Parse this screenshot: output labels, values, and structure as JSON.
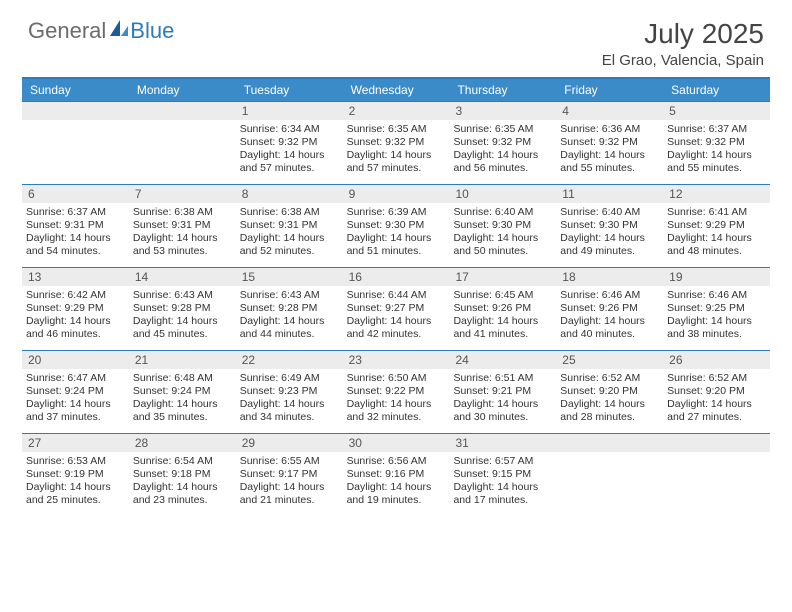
{
  "logo": {
    "general": "General",
    "blue": "Blue"
  },
  "title": "July 2025",
  "location": "El Grao, Valencia, Spain",
  "day_headers": [
    "Sunday",
    "Monday",
    "Tuesday",
    "Wednesday",
    "Thursday",
    "Friday",
    "Saturday"
  ],
  "colors": {
    "header_bg": "#3b8bc9",
    "border": "#2b7bbd",
    "daynum_bg": "#ececec"
  },
  "weeks": [
    [
      null,
      null,
      {
        "n": "1",
        "sr": "6:34 AM",
        "ss": "9:32 PM",
        "dl": "14 hours and 57 minutes."
      },
      {
        "n": "2",
        "sr": "6:35 AM",
        "ss": "9:32 PM",
        "dl": "14 hours and 57 minutes."
      },
      {
        "n": "3",
        "sr": "6:35 AM",
        "ss": "9:32 PM",
        "dl": "14 hours and 56 minutes."
      },
      {
        "n": "4",
        "sr": "6:36 AM",
        "ss": "9:32 PM",
        "dl": "14 hours and 55 minutes."
      },
      {
        "n": "5",
        "sr": "6:37 AM",
        "ss": "9:32 PM",
        "dl": "14 hours and 55 minutes."
      }
    ],
    [
      {
        "n": "6",
        "sr": "6:37 AM",
        "ss": "9:31 PM",
        "dl": "14 hours and 54 minutes."
      },
      {
        "n": "7",
        "sr": "6:38 AM",
        "ss": "9:31 PM",
        "dl": "14 hours and 53 minutes."
      },
      {
        "n": "8",
        "sr": "6:38 AM",
        "ss": "9:31 PM",
        "dl": "14 hours and 52 minutes."
      },
      {
        "n": "9",
        "sr": "6:39 AM",
        "ss": "9:30 PM",
        "dl": "14 hours and 51 minutes."
      },
      {
        "n": "10",
        "sr": "6:40 AM",
        "ss": "9:30 PM",
        "dl": "14 hours and 50 minutes."
      },
      {
        "n": "11",
        "sr": "6:40 AM",
        "ss": "9:30 PM",
        "dl": "14 hours and 49 minutes."
      },
      {
        "n": "12",
        "sr": "6:41 AM",
        "ss": "9:29 PM",
        "dl": "14 hours and 48 minutes."
      }
    ],
    [
      {
        "n": "13",
        "sr": "6:42 AM",
        "ss": "9:29 PM",
        "dl": "14 hours and 46 minutes."
      },
      {
        "n": "14",
        "sr": "6:43 AM",
        "ss": "9:28 PM",
        "dl": "14 hours and 45 minutes."
      },
      {
        "n": "15",
        "sr": "6:43 AM",
        "ss": "9:28 PM",
        "dl": "14 hours and 44 minutes."
      },
      {
        "n": "16",
        "sr": "6:44 AM",
        "ss": "9:27 PM",
        "dl": "14 hours and 42 minutes."
      },
      {
        "n": "17",
        "sr": "6:45 AM",
        "ss": "9:26 PM",
        "dl": "14 hours and 41 minutes."
      },
      {
        "n": "18",
        "sr": "6:46 AM",
        "ss": "9:26 PM",
        "dl": "14 hours and 40 minutes."
      },
      {
        "n": "19",
        "sr": "6:46 AM",
        "ss": "9:25 PM",
        "dl": "14 hours and 38 minutes."
      }
    ],
    [
      {
        "n": "20",
        "sr": "6:47 AM",
        "ss": "9:24 PM",
        "dl": "14 hours and 37 minutes."
      },
      {
        "n": "21",
        "sr": "6:48 AM",
        "ss": "9:24 PM",
        "dl": "14 hours and 35 minutes."
      },
      {
        "n": "22",
        "sr": "6:49 AM",
        "ss": "9:23 PM",
        "dl": "14 hours and 34 minutes."
      },
      {
        "n": "23",
        "sr": "6:50 AM",
        "ss": "9:22 PM",
        "dl": "14 hours and 32 minutes."
      },
      {
        "n": "24",
        "sr": "6:51 AM",
        "ss": "9:21 PM",
        "dl": "14 hours and 30 minutes."
      },
      {
        "n": "25",
        "sr": "6:52 AM",
        "ss": "9:20 PM",
        "dl": "14 hours and 28 minutes."
      },
      {
        "n": "26",
        "sr": "6:52 AM",
        "ss": "9:20 PM",
        "dl": "14 hours and 27 minutes."
      }
    ],
    [
      {
        "n": "27",
        "sr": "6:53 AM",
        "ss": "9:19 PM",
        "dl": "14 hours and 25 minutes."
      },
      {
        "n": "28",
        "sr": "6:54 AM",
        "ss": "9:18 PM",
        "dl": "14 hours and 23 minutes."
      },
      {
        "n": "29",
        "sr": "6:55 AM",
        "ss": "9:17 PM",
        "dl": "14 hours and 21 minutes."
      },
      {
        "n": "30",
        "sr": "6:56 AM",
        "ss": "9:16 PM",
        "dl": "14 hours and 19 minutes."
      },
      {
        "n": "31",
        "sr": "6:57 AM",
        "ss": "9:15 PM",
        "dl": "14 hours and 17 minutes."
      },
      null,
      null
    ]
  ],
  "labels": {
    "sunrise": "Sunrise:",
    "sunset": "Sunset:",
    "daylight": "Daylight:"
  }
}
